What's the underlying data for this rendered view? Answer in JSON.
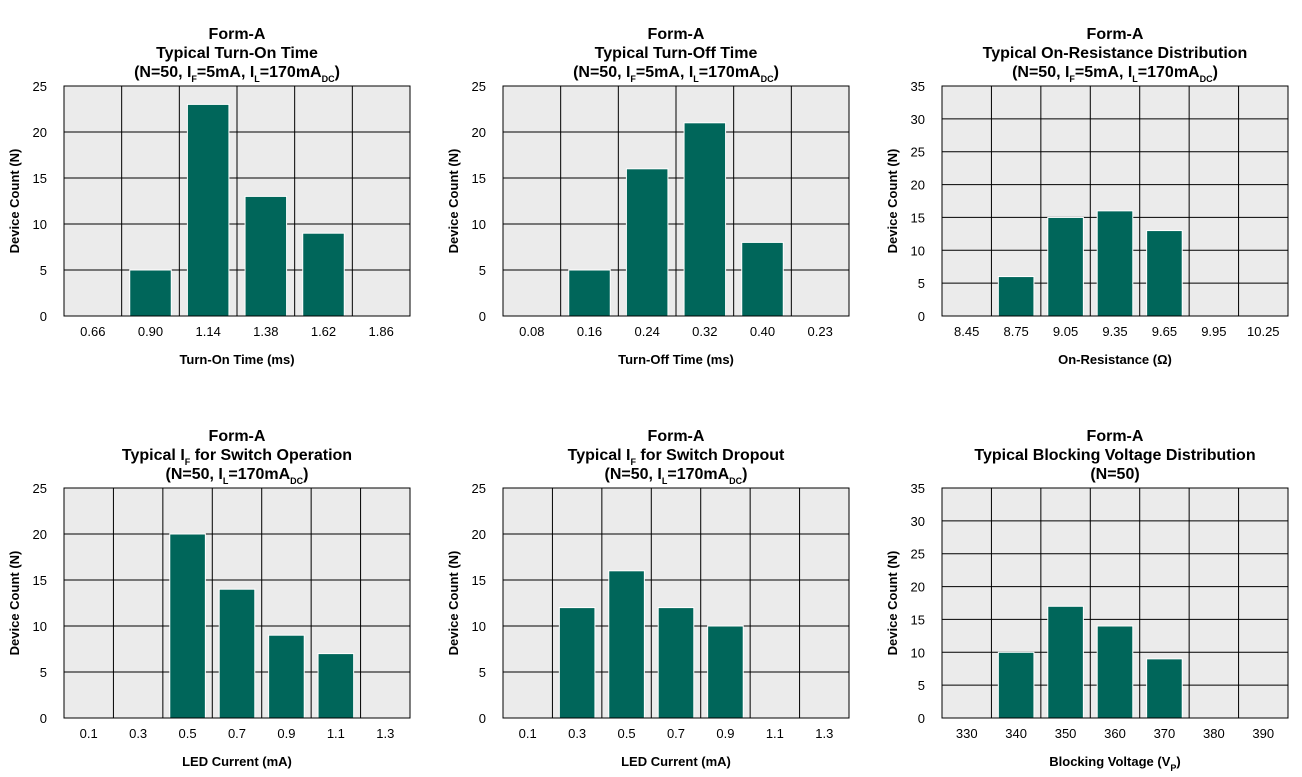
{
  "colors": {
    "bar": "#00665a",
    "plot_bg": "#ebebeb",
    "grid": "#000000"
  },
  "chart_data": [
    {
      "type": "bar",
      "title_lines": [
        [
          {
            "t": "Form-A"
          }
        ],
        [
          {
            "t": "Typical Turn-On Time"
          }
        ],
        [
          {
            "t": "(N=50, I"
          },
          {
            "t": "F",
            "sub": true
          },
          {
            "t": "=5mA, I"
          },
          {
            "t": "L",
            "sub": true
          },
          {
            "t": "=170mA"
          },
          {
            "t": "DC",
            "sub": true
          },
          {
            "t": ")"
          }
        ]
      ],
      "xlabel": [
        {
          "t": "Turn-On Time (ms)"
        }
      ],
      "ylabel": "Device Count (N)",
      "categories": [
        "0.66",
        "0.90",
        "1.14",
        "1.38",
        "1.62",
        "1.86"
      ],
      "values": [
        0,
        5,
        23,
        13,
        9,
        0
      ],
      "ylim": [
        0,
        25
      ],
      "yticks": [
        0,
        5,
        10,
        15,
        20,
        25
      ],
      "grid": true
    },
    {
      "type": "bar",
      "title_lines": [
        [
          {
            "t": "Form-A"
          }
        ],
        [
          {
            "t": "Typical Turn-Off Time"
          }
        ],
        [
          {
            "t": "(N=50, I"
          },
          {
            "t": "F",
            "sub": true
          },
          {
            "t": "=5mA, I"
          },
          {
            "t": "L",
            "sub": true
          },
          {
            "t": "=170mA"
          },
          {
            "t": "DC",
            "sub": true
          },
          {
            "t": ")"
          }
        ]
      ],
      "xlabel": [
        {
          "t": "Turn-Off Time (ms)"
        }
      ],
      "ylabel": "Device Count (N)",
      "categories": [
        "0.08",
        "0.16",
        "0.24",
        "0.32",
        "0.40",
        "0.23"
      ],
      "values": [
        0,
        5,
        16,
        21,
        8,
        0
      ],
      "ylim": [
        0,
        25
      ],
      "yticks": [
        0,
        5,
        10,
        15,
        20,
        25
      ],
      "grid": true
    },
    {
      "type": "bar",
      "title_lines": [
        [
          {
            "t": "Form-A"
          }
        ],
        [
          {
            "t": "Typical On-Resistance Distribution"
          }
        ],
        [
          {
            "t": "(N=50, I"
          },
          {
            "t": "F",
            "sub": true
          },
          {
            "t": "=5mA, I"
          },
          {
            "t": "L",
            "sub": true
          },
          {
            "t": "=170mA"
          },
          {
            "t": "DC",
            "sub": true
          },
          {
            "t": ")"
          }
        ]
      ],
      "xlabel": [
        {
          "t": "On-Resistance (Ω)"
        }
      ],
      "ylabel": "Device Count (N)",
      "categories": [
        "8.45",
        "8.75",
        "9.05",
        "9.35",
        "9.65",
        "9.95",
        "10.25"
      ],
      "values": [
        0,
        6,
        15,
        16,
        13,
        0,
        0
      ],
      "ylim": [
        0,
        35
      ],
      "yticks": [
        0,
        5,
        10,
        15,
        20,
        25,
        30,
        35
      ],
      "grid": true
    },
    {
      "type": "bar",
      "title_lines": [
        [
          {
            "t": "Form-A"
          }
        ],
        [
          {
            "t": "Typical I"
          },
          {
            "t": "F",
            "sub": true
          },
          {
            "t": " for Switch Operation"
          }
        ],
        [
          {
            "t": "(N=50, I"
          },
          {
            "t": "L",
            "sub": true
          },
          {
            "t": "=170mA"
          },
          {
            "t": "DC",
            "sub": true
          },
          {
            "t": ")"
          }
        ]
      ],
      "xlabel": [
        {
          "t": "LED Current (mA)"
        }
      ],
      "ylabel": "Device Count (N)",
      "categories": [
        "0.1",
        "0.3",
        "0.5",
        "0.7",
        "0.9",
        "1.1",
        "1.3"
      ],
      "values": [
        0,
        0,
        20,
        14,
        9,
        7,
        0
      ],
      "ylim": [
        0,
        25
      ],
      "yticks": [
        0,
        5,
        10,
        15,
        20,
        25
      ],
      "grid": true
    },
    {
      "type": "bar",
      "title_lines": [
        [
          {
            "t": "Form-A"
          }
        ],
        [
          {
            "t": "Typical I"
          },
          {
            "t": "F",
            "sub": true
          },
          {
            "t": " for Switch Dropout"
          }
        ],
        [
          {
            "t": "(N=50, I"
          },
          {
            "t": "L",
            "sub": true
          },
          {
            "t": "=170mA"
          },
          {
            "t": "DC",
            "sub": true
          },
          {
            "t": ")"
          }
        ]
      ],
      "xlabel": [
        {
          "t": "LED Current (mA)"
        }
      ],
      "ylabel": "Device Count (N)",
      "categories": [
        "0.1",
        "0.3",
        "0.5",
        "0.7",
        "0.9",
        "1.1",
        "1.3"
      ],
      "values": [
        0,
        12,
        16,
        12,
        10,
        0,
        0
      ],
      "ylim": [
        0,
        25
      ],
      "yticks": [
        0,
        5,
        10,
        15,
        20,
        25
      ],
      "grid": true
    },
    {
      "type": "bar",
      "title_lines": [
        [
          {
            "t": "Form-A"
          }
        ],
        [
          {
            "t": "Typical Blocking Voltage Distribution"
          }
        ],
        [
          {
            "t": "(N=50)"
          }
        ]
      ],
      "xlabel": [
        {
          "t": "Blocking Voltage (V"
        },
        {
          "t": "P",
          "sub": true
        },
        {
          "t": ")"
        }
      ],
      "ylabel": "Device Count (N)",
      "categories": [
        "330",
        "340",
        "350",
        "360",
        "370",
        "380",
        "390"
      ],
      "values": [
        0,
        10,
        17,
        14,
        9,
        0,
        0
      ],
      "ylim": [
        0,
        35
      ],
      "yticks": [
        0,
        5,
        10,
        15,
        20,
        25,
        30,
        35
      ],
      "grid": true
    }
  ]
}
